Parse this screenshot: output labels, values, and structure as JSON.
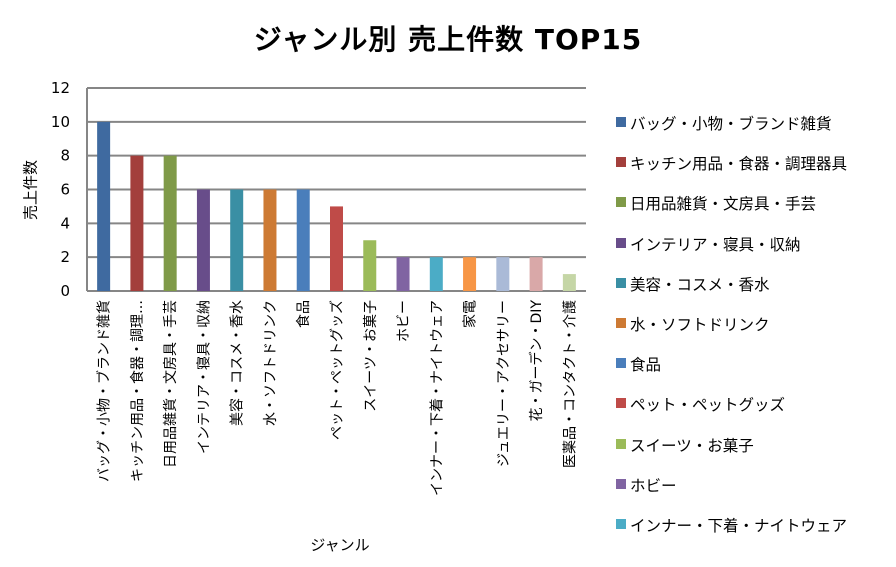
{
  "chart_data": {
    "type": "bar",
    "title": "ジャンル別 売上件数 TOP15",
    "xlabel": "ジャンル",
    "ylabel": "売上件数",
    "ylim": [
      0,
      12
    ],
    "yticks": [
      0,
      2,
      4,
      6,
      8,
      10,
      12
    ],
    "grid": true,
    "legend_position": "right",
    "categories": [
      "バッグ・小物・ブランド雑貨",
      "キッチン用品・食器・調理器具",
      "日用品雑貨・文房具・手芸",
      "インテリア・寝具・収納",
      "美容・コスメ・香水",
      "水・ソフトドリンク",
      "食品",
      "ペット・ペットグッズ",
      "スイーツ・お菓子",
      "ホビー",
      "インナー・下着・ナイトウェア",
      "家電",
      "ジュエリー・アクセサリー",
      "花・ガーデン・DIY",
      "医薬品・コンタクト・介護"
    ],
    "tick_labels": [
      "バッグ・小物・ブランド雑貨",
      "キッチン用品・食器・調理…",
      "日用品雑貨・文房具・手芸",
      "インテリア・寝具・収納",
      "美容・コスメ・香水",
      "水・ソフトドリンク",
      "食品",
      "ペット・ペットグッズ",
      "スイーツ・お菓子",
      "ホビー",
      "インナー・下着・ナイトウェア",
      "家電",
      "ジュエリー・アクセサリー",
      "花・ガーデン・DIY",
      "医薬品・コンタクト・介護"
    ],
    "values": [
      10,
      8,
      8,
      6,
      6,
      6,
      6,
      5,
      3,
      2,
      2,
      2,
      2,
      2,
      1
    ],
    "colors": [
      "#3f6aa0",
      "#a33f3c",
      "#7f9a48",
      "#684d8a",
      "#3a8fa4",
      "#cd7a34",
      "#4a7ebb",
      "#bf4b48",
      "#9bbb59",
      "#8064a2",
      "#4bacc6",
      "#f79646",
      "#aabad7",
      "#d9a8a8",
      "#c5d6a6"
    ],
    "legend_entries": [
      "バッグ・小物・ブランド雑貨",
      "キッチン用品・食器・調理器具",
      "日用品雑貨・文房具・手芸",
      "インテリア・寝具・収納",
      "美容・コスメ・香水",
      "水・ソフトドリンク",
      "食品",
      "ペット・ペットグッズ",
      "スイーツ・お菓子",
      "ホビー",
      "インナー・下着・ナイトウェア"
    ]
  }
}
